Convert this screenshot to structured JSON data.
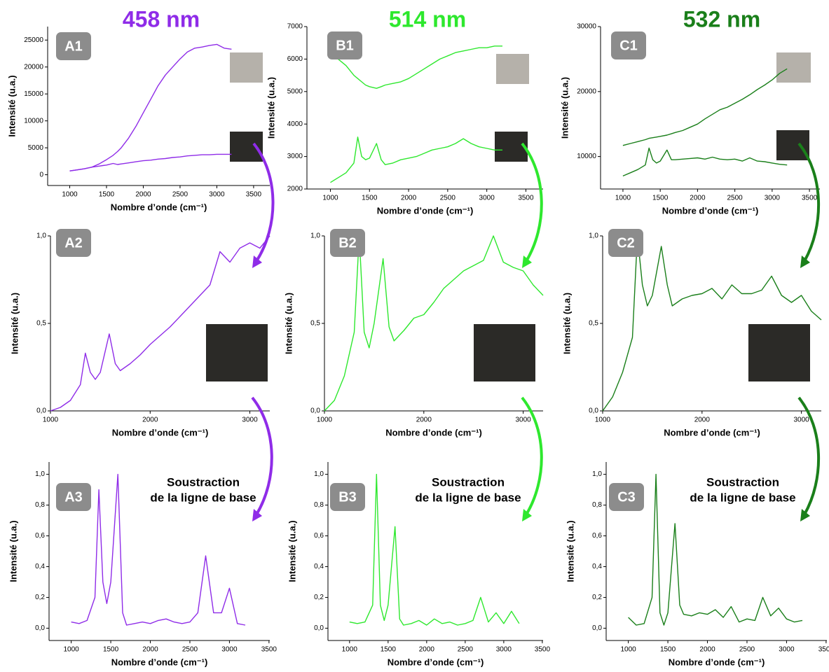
{
  "chart_data": [
    {
      "type": "line",
      "title": "458 nm",
      "panel": "A1",
      "x_label": "Nombre d’onde (cm⁻¹)",
      "y_label": "Intensité (u.a.)",
      "color": "#8f2ce8",
      "xlim": [
        700,
        3720
      ],
      "xticks": [
        1000,
        1500,
        2000,
        2500,
        3000,
        3500
      ],
      "ylim": [
        -2000,
        27500
      ],
      "yticks": [
        0,
        5000,
        10000,
        15000,
        20000,
        25000
      ],
      "x": [
        1000,
        1100,
        1200,
        1300,
        1350,
        1400,
        1450,
        1500,
        1590,
        1650,
        1700,
        1800,
        1900,
        2000,
        2100,
        2200,
        2300,
        2400,
        2500,
        2600,
        2700,
        2800,
        2900,
        3000,
        3100,
        3200
      ],
      "series": [
        {
          "color": "#8f2ce8",
          "values": [
            700,
            900,
            1100,
            1400,
            1700,
            2000,
            2400,
            2800,
            3600,
            4300,
            5000,
            6800,
            9000,
            11500,
            14000,
            16500,
            18500,
            20000,
            21500,
            22800,
            23500,
            23700,
            24000,
            24200,
            23500,
            23300
          ]
        },
        {
          "color": "#8f2ce8",
          "values": [
            700,
            900,
            1100,
            1400,
            1500,
            1600,
            1700,
            1800,
            2100,
            1900,
            2000,
            2200,
            2400,
            2600,
            2700,
            2900,
            3000,
            3200,
            3300,
            3500,
            3600,
            3700,
            3700,
            3800,
            3800,
            3800
          ]
        }
      ]
    },
    {
      "type": "line",
      "title": "514 nm",
      "panel": "B1",
      "x_label": "Nombre d’onde (cm⁻¹)",
      "y_label": "Intensité (u.a.)",
      "color": "#2ee82e",
      "xlim": [
        700,
        3720
      ],
      "xticks": [
        1000,
        1500,
        2000,
        2500,
        3000,
        3500
      ],
      "ylim": [
        2000,
        7000
      ],
      "yticks": [
        2000,
        3000,
        4000,
        5000,
        6000,
        7000
      ],
      "x": [
        1000,
        1100,
        1200,
        1300,
        1350,
        1400,
        1450,
        1500,
        1590,
        1650,
        1700,
        1800,
        1900,
        2000,
        2100,
        2200,
        2300,
        2400,
        2500,
        2600,
        2700,
        2800,
        2900,
        3000,
        3100,
        3200
      ],
      "series": [
        {
          "color": "#2ee82e",
          "values": [
            6300,
            6000,
            5800,
            5500,
            5400,
            5300,
            5200,
            5150,
            5100,
            5150,
            5200,
            5250,
            5300,
            5400,
            5550,
            5700,
            5850,
            6000,
            6100,
            6200,
            6250,
            6300,
            6350,
            6350,
            6400,
            6400
          ]
        },
        {
          "color": "#2ee82e",
          "values": [
            2200,
            2350,
            2500,
            2800,
            3600,
            3000,
            2900,
            2950,
            3400,
            2900,
            2750,
            2800,
            2900,
            2950,
            3000,
            3100,
            3200,
            3250,
            3300,
            3400,
            3550,
            3400,
            3300,
            3250,
            3200,
            3200
          ]
        }
      ]
    },
    {
      "type": "line",
      "title": "532 nm",
      "panel": "C1",
      "x_label": "Nombre d’onde (cm⁻¹)",
      "y_label": "Intensité (u.a.)",
      "color": "#1a7f1a",
      "xlim": [
        700,
        3640
      ],
      "xticks": [
        1000,
        1500,
        2000,
        2500,
        3000,
        3500
      ],
      "ylim": [
        5000,
        30000
      ],
      "yticks": [
        10000,
        20000,
        30000
      ],
      "x": [
        1000,
        1100,
        1200,
        1300,
        1350,
        1400,
        1450,
        1500,
        1590,
        1650,
        1700,
        1800,
        1900,
        2000,
        2100,
        2200,
        2300,
        2400,
        2500,
        2600,
        2700,
        2800,
        2900,
        3000,
        3100,
        3200
      ],
      "series": [
        {
          "color": "#1a7f1a",
          "values": [
            11700,
            12000,
            12300,
            12600,
            12800,
            12900,
            13000,
            13100,
            13300,
            13500,
            13700,
            14000,
            14500,
            15000,
            15800,
            16500,
            17200,
            17600,
            18200,
            18800,
            19500,
            20300,
            21000,
            21800,
            22800,
            23500
          ]
        },
        {
          "color": "#1a7f1a",
          "values": [
            7000,
            7500,
            8000,
            8700,
            11300,
            9500,
            9000,
            9300,
            11000,
            9500,
            9500,
            9600,
            9700,
            9800,
            9600,
            9900,
            9600,
            9500,
            9600,
            9300,
            9800,
            9300,
            9200,
            9000,
            8800,
            8700
          ]
        }
      ]
    },
    {
      "type": "line",
      "panel": "A2",
      "x_label": "Nombre d’onde (cm⁻¹)",
      "y_label": "Intensité (u.a.)",
      "color": "#8f2ce8",
      "xlim": [
        1000,
        3200
      ],
      "xticks": [
        1000,
        2000,
        3000
      ],
      "ylim": [
        0,
        1
      ],
      "yticks": [
        {
          "value": 0,
          "label": "0,0"
        },
        {
          "value": 0.5,
          "label": "0,5"
        },
        {
          "value": 1,
          "label": "1,0"
        }
      ],
      "x": [
        1000,
        1100,
        1200,
        1300,
        1350,
        1400,
        1450,
        1500,
        1590,
        1650,
        1700,
        1800,
        1900,
        2000,
        2100,
        2200,
        2300,
        2400,
        2500,
        2600,
        2700,
        2800,
        2900,
        3000,
        3100,
        3200
      ],
      "series": [
        {
          "color": "#8f2ce8",
          "values": [
            0,
            0.02,
            0.06,
            0.15,
            0.33,
            0.22,
            0.18,
            0.22,
            0.44,
            0.27,
            0.23,
            0.27,
            0.32,
            0.38,
            0.43,
            0.48,
            0.54,
            0.6,
            0.66,
            0.72,
            0.91,
            0.85,
            0.93,
            0.96,
            0.93,
            1
          ]
        }
      ]
    },
    {
      "type": "line",
      "panel": "B2",
      "x_label": "Nombre d’onde (cm⁻¹)",
      "y_label": "Intensité (u.a.)",
      "color": "#2ee82e",
      "xlim": [
        1000,
        3200
      ],
      "xticks": [
        1000,
        2000,
        3000
      ],
      "ylim": [
        0,
        1
      ],
      "yticks": [
        {
          "value": 0,
          "label": "0,0"
        },
        {
          "value": 0.5,
          "label": "0,5"
        },
        {
          "value": 1,
          "label": "1,0"
        }
      ],
      "x": [
        1000,
        1100,
        1200,
        1300,
        1350,
        1400,
        1450,
        1500,
        1590,
        1650,
        1700,
        1800,
        1900,
        2000,
        2100,
        2200,
        2300,
        2400,
        2500,
        2600,
        2700,
        2800,
        2900,
        3000,
        3100,
        3200
      ],
      "series": [
        {
          "color": "#2ee82e",
          "values": [
            0,
            0.06,
            0.2,
            0.45,
            1,
            0.45,
            0.36,
            0.5,
            0.87,
            0.48,
            0.4,
            0.46,
            0.53,
            0.55,
            0.62,
            0.7,
            0.75,
            0.8,
            0.83,
            0.86,
            1,
            0.85,
            0.82,
            0.8,
            0.72,
            0.66
          ]
        }
      ]
    },
    {
      "type": "line",
      "panel": "C2",
      "x_label": "Nombre d’onde (cm⁻¹)",
      "y_label": "Intensité (u.a.)",
      "color": "#1a7f1a",
      "xlim": [
        1000,
        3200
      ],
      "xticks": [
        1000,
        2000,
        3000
      ],
      "ylim": [
        0,
        1
      ],
      "yticks": [
        {
          "value": 0,
          "label": "0,0"
        },
        {
          "value": 0.5,
          "label": "0,5"
        },
        {
          "value": 1,
          "label": "1,0"
        }
      ],
      "x": [
        1000,
        1100,
        1200,
        1300,
        1350,
        1400,
        1450,
        1500,
        1590,
        1650,
        1700,
        1800,
        1900,
        2000,
        2100,
        2200,
        2300,
        2400,
        2500,
        2600,
        2700,
        2800,
        2900,
        3000,
        3100,
        3200
      ],
      "series": [
        {
          "color": "#1a7f1a",
          "values": [
            0,
            0.08,
            0.22,
            0.42,
            1,
            0.72,
            0.6,
            0.66,
            0.94,
            0.72,
            0.6,
            0.64,
            0.66,
            0.67,
            0.7,
            0.64,
            0.72,
            0.67,
            0.67,
            0.69,
            0.77,
            0.66,
            0.62,
            0.66,
            0.57,
            0.52
          ]
        }
      ]
    },
    {
      "type": "line",
      "panel": "A3",
      "annotation": [
        "Soustraction",
        "de la ligne de base"
      ],
      "x_label": "Nombre d’onde (cm⁻¹)",
      "y_label": "Intensité (u.a.)",
      "color": "#8f2ce8",
      "xlim": [
        720,
        3510
      ],
      "xticks": [
        1000,
        1500,
        2000,
        2500,
        3000,
        3500
      ],
      "ylim": [
        -0.08,
        1.08
      ],
      "yticks": [
        {
          "value": 0,
          "label": "0,0"
        },
        {
          "value": 0.2,
          "label": "0,2"
        },
        {
          "value": 0.4,
          "label": "0,4"
        },
        {
          "value": 0.6,
          "label": "0,6"
        },
        {
          "value": 0.8,
          "label": "0,8"
        },
        {
          "value": 1,
          "label": "1,0"
        }
      ],
      "x": [
        1000,
        1100,
        1200,
        1300,
        1350,
        1400,
        1450,
        1500,
        1590,
        1650,
        1700,
        1800,
        1900,
        2000,
        2100,
        2200,
        2300,
        2400,
        2500,
        2600,
        2700,
        2800,
        2900,
        3000,
        3100,
        3200
      ],
      "series": [
        {
          "color": "#8f2ce8",
          "values": [
            0.04,
            0.03,
            0.05,
            0.2,
            0.9,
            0.3,
            0.16,
            0.3,
            1,
            0.1,
            0.02,
            0.03,
            0.04,
            0.03,
            0.05,
            0.06,
            0.04,
            0.03,
            0.04,
            0.1,
            0.47,
            0.1,
            0.1,
            0.26,
            0.03,
            0.02
          ]
        }
      ]
    },
    {
      "type": "line",
      "panel": "B3",
      "annotation": [
        "Soustraction",
        "de la ligne de base"
      ],
      "x_label": "Nombre d’onde (cm⁻¹)",
      "y_label": "Intensité (u.a.)",
      "color": "#2ee82e",
      "xlim": [
        720,
        3510
      ],
      "xticks": [
        1000,
        1500,
        2000,
        2500,
        3000,
        3500
      ],
      "ylim": [
        -0.08,
        1.08
      ],
      "yticks": [
        {
          "value": 0,
          "label": "0,0"
        },
        {
          "value": 0.2,
          "label": "0,2"
        },
        {
          "value": 0.4,
          "label": "0,4"
        },
        {
          "value": 0.6,
          "label": "0,6"
        },
        {
          "value": 0.8,
          "label": "0,8"
        },
        {
          "value": 1,
          "label": "1,0"
        }
      ],
      "x": [
        1000,
        1100,
        1200,
        1300,
        1350,
        1400,
        1450,
        1500,
        1590,
        1650,
        1700,
        1800,
        1900,
        2000,
        2100,
        2200,
        2300,
        2400,
        2500,
        2600,
        2700,
        2800,
        2900,
        3000,
        3100,
        3200
      ],
      "series": [
        {
          "color": "#2ee82e",
          "values": [
            0.04,
            0.03,
            0.04,
            0.15,
            1,
            0.15,
            0.05,
            0.15,
            0.66,
            0.06,
            0.02,
            0.03,
            0.05,
            0.02,
            0.06,
            0.03,
            0.04,
            0.02,
            0.03,
            0.05,
            0.2,
            0.04,
            0.1,
            0.03,
            0.11,
            0.03
          ]
        }
      ]
    },
    {
      "type": "line",
      "panel": "C3",
      "annotation": [
        "Soustraction",
        "de la ligne de base"
      ],
      "x_label": "Nombre d’onde (cm⁻¹)",
      "y_label": "Intensité (u.a.)",
      "color": "#1a7f1a",
      "xlim": [
        720,
        3510
      ],
      "xticks": [
        1000,
        1500,
        2000,
        2500,
        3000,
        3500
      ],
      "ylim": [
        -0.08,
        1.08
      ],
      "yticks": [
        {
          "value": 0,
          "label": "0,0"
        },
        {
          "value": 0.2,
          "label": "0,2"
        },
        {
          "value": 0.4,
          "label": "0,4"
        },
        {
          "value": 0.6,
          "label": "0,6"
        },
        {
          "value": 0.8,
          "label": "0,8"
        },
        {
          "value": 1,
          "label": "1,0"
        }
      ],
      "x": [
        1000,
        1100,
        1200,
        1300,
        1350,
        1400,
        1450,
        1500,
        1590,
        1650,
        1700,
        1800,
        1900,
        2000,
        2100,
        2200,
        2300,
        2400,
        2500,
        2600,
        2700,
        2800,
        2900,
        3000,
        3100,
        3200
      ],
      "series": [
        {
          "color": "#1a7f1a",
          "values": [
            0.07,
            0.02,
            0.03,
            0.2,
            1,
            0.1,
            0.02,
            0.1,
            0.68,
            0.15,
            0.09,
            0.08,
            0.1,
            0.09,
            0.12,
            0.07,
            0.14,
            0.04,
            0.06,
            0.05,
            0.2,
            0.08,
            0.13,
            0.06,
            0.04,
            0.05
          ]
        }
      ]
    }
  ]
}
